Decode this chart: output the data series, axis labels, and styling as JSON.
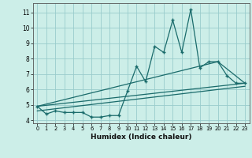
{
  "title": "",
  "xlabel": "Humidex (Indice chaleur)",
  "bg_color": "#cceee8",
  "grid_color": "#99cccc",
  "line_color": "#1a6b6b",
  "xlim": [
    -0.5,
    23.5
  ],
  "ylim": [
    3.8,
    11.6
  ],
  "xticks": [
    0,
    1,
    2,
    3,
    4,
    5,
    6,
    7,
    8,
    9,
    10,
    11,
    12,
    13,
    14,
    15,
    16,
    17,
    18,
    19,
    20,
    21,
    22,
    23
  ],
  "yticks": [
    4,
    5,
    6,
    7,
    8,
    9,
    10,
    11
  ],
  "main_x": [
    0,
    1,
    2,
    3,
    4,
    5,
    6,
    7,
    8,
    9,
    10,
    11,
    12,
    13,
    14,
    15,
    16,
    17,
    18,
    19,
    20,
    21,
    22,
    23
  ],
  "main_y": [
    4.9,
    4.4,
    4.6,
    4.5,
    4.5,
    4.5,
    4.2,
    4.2,
    4.3,
    4.3,
    5.9,
    7.5,
    6.5,
    8.8,
    8.4,
    10.5,
    8.4,
    11.2,
    7.4,
    7.8,
    7.8,
    6.9,
    6.4,
    6.4
  ],
  "trend1_x": [
    0,
    23
  ],
  "trend1_y": [
    4.9,
    6.4
  ],
  "trend2_x": [
    0,
    23
  ],
  "trend2_y": [
    4.6,
    6.2
  ],
  "trend3_x": [
    0,
    20,
    23
  ],
  "trend3_y": [
    4.9,
    7.8,
    6.4
  ]
}
